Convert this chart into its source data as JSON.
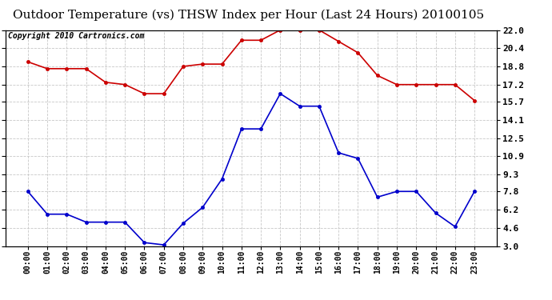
{
  "title": "Outdoor Temperature (vs) THSW Index per Hour (Last 24 Hours) 20100105",
  "copyright": "Copyright 2010 Cartronics.com",
  "x_labels": [
    "00:00",
    "01:00",
    "02:00",
    "03:00",
    "04:00",
    "05:00",
    "06:00",
    "07:00",
    "08:00",
    "09:00",
    "10:00",
    "11:00",
    "12:00",
    "13:00",
    "14:00",
    "15:00",
    "16:00",
    "17:00",
    "18:00",
    "19:00",
    "20:00",
    "21:00",
    "22:00",
    "23:00"
  ],
  "red_data": [
    19.2,
    18.6,
    18.6,
    18.6,
    17.4,
    17.2,
    16.4,
    16.4,
    18.8,
    19.0,
    19.0,
    21.1,
    21.1,
    22.0,
    22.0,
    22.0,
    21.0,
    20.0,
    18.0,
    17.2,
    17.2,
    17.2,
    17.2,
    15.8
  ],
  "blue_data": [
    7.8,
    5.8,
    5.8,
    5.1,
    5.1,
    5.1,
    3.3,
    3.1,
    5.0,
    6.4,
    8.9,
    13.3,
    13.3,
    16.4,
    15.3,
    15.3,
    11.2,
    10.7,
    7.3,
    7.8,
    7.8,
    5.9,
    4.7,
    7.8
  ],
  "red_color": "#cc0000",
  "blue_color": "#0000cc",
  "ylim": [
    3.0,
    22.0
  ],
  "yticks": [
    3.0,
    4.6,
    6.2,
    7.8,
    9.3,
    10.9,
    12.5,
    14.1,
    15.7,
    17.2,
    18.8,
    20.4,
    22.0
  ],
  "bg_color": "#ffffff",
  "grid_color": "#c8c8c8",
  "title_fontsize": 11,
  "copyright_fontsize": 7
}
